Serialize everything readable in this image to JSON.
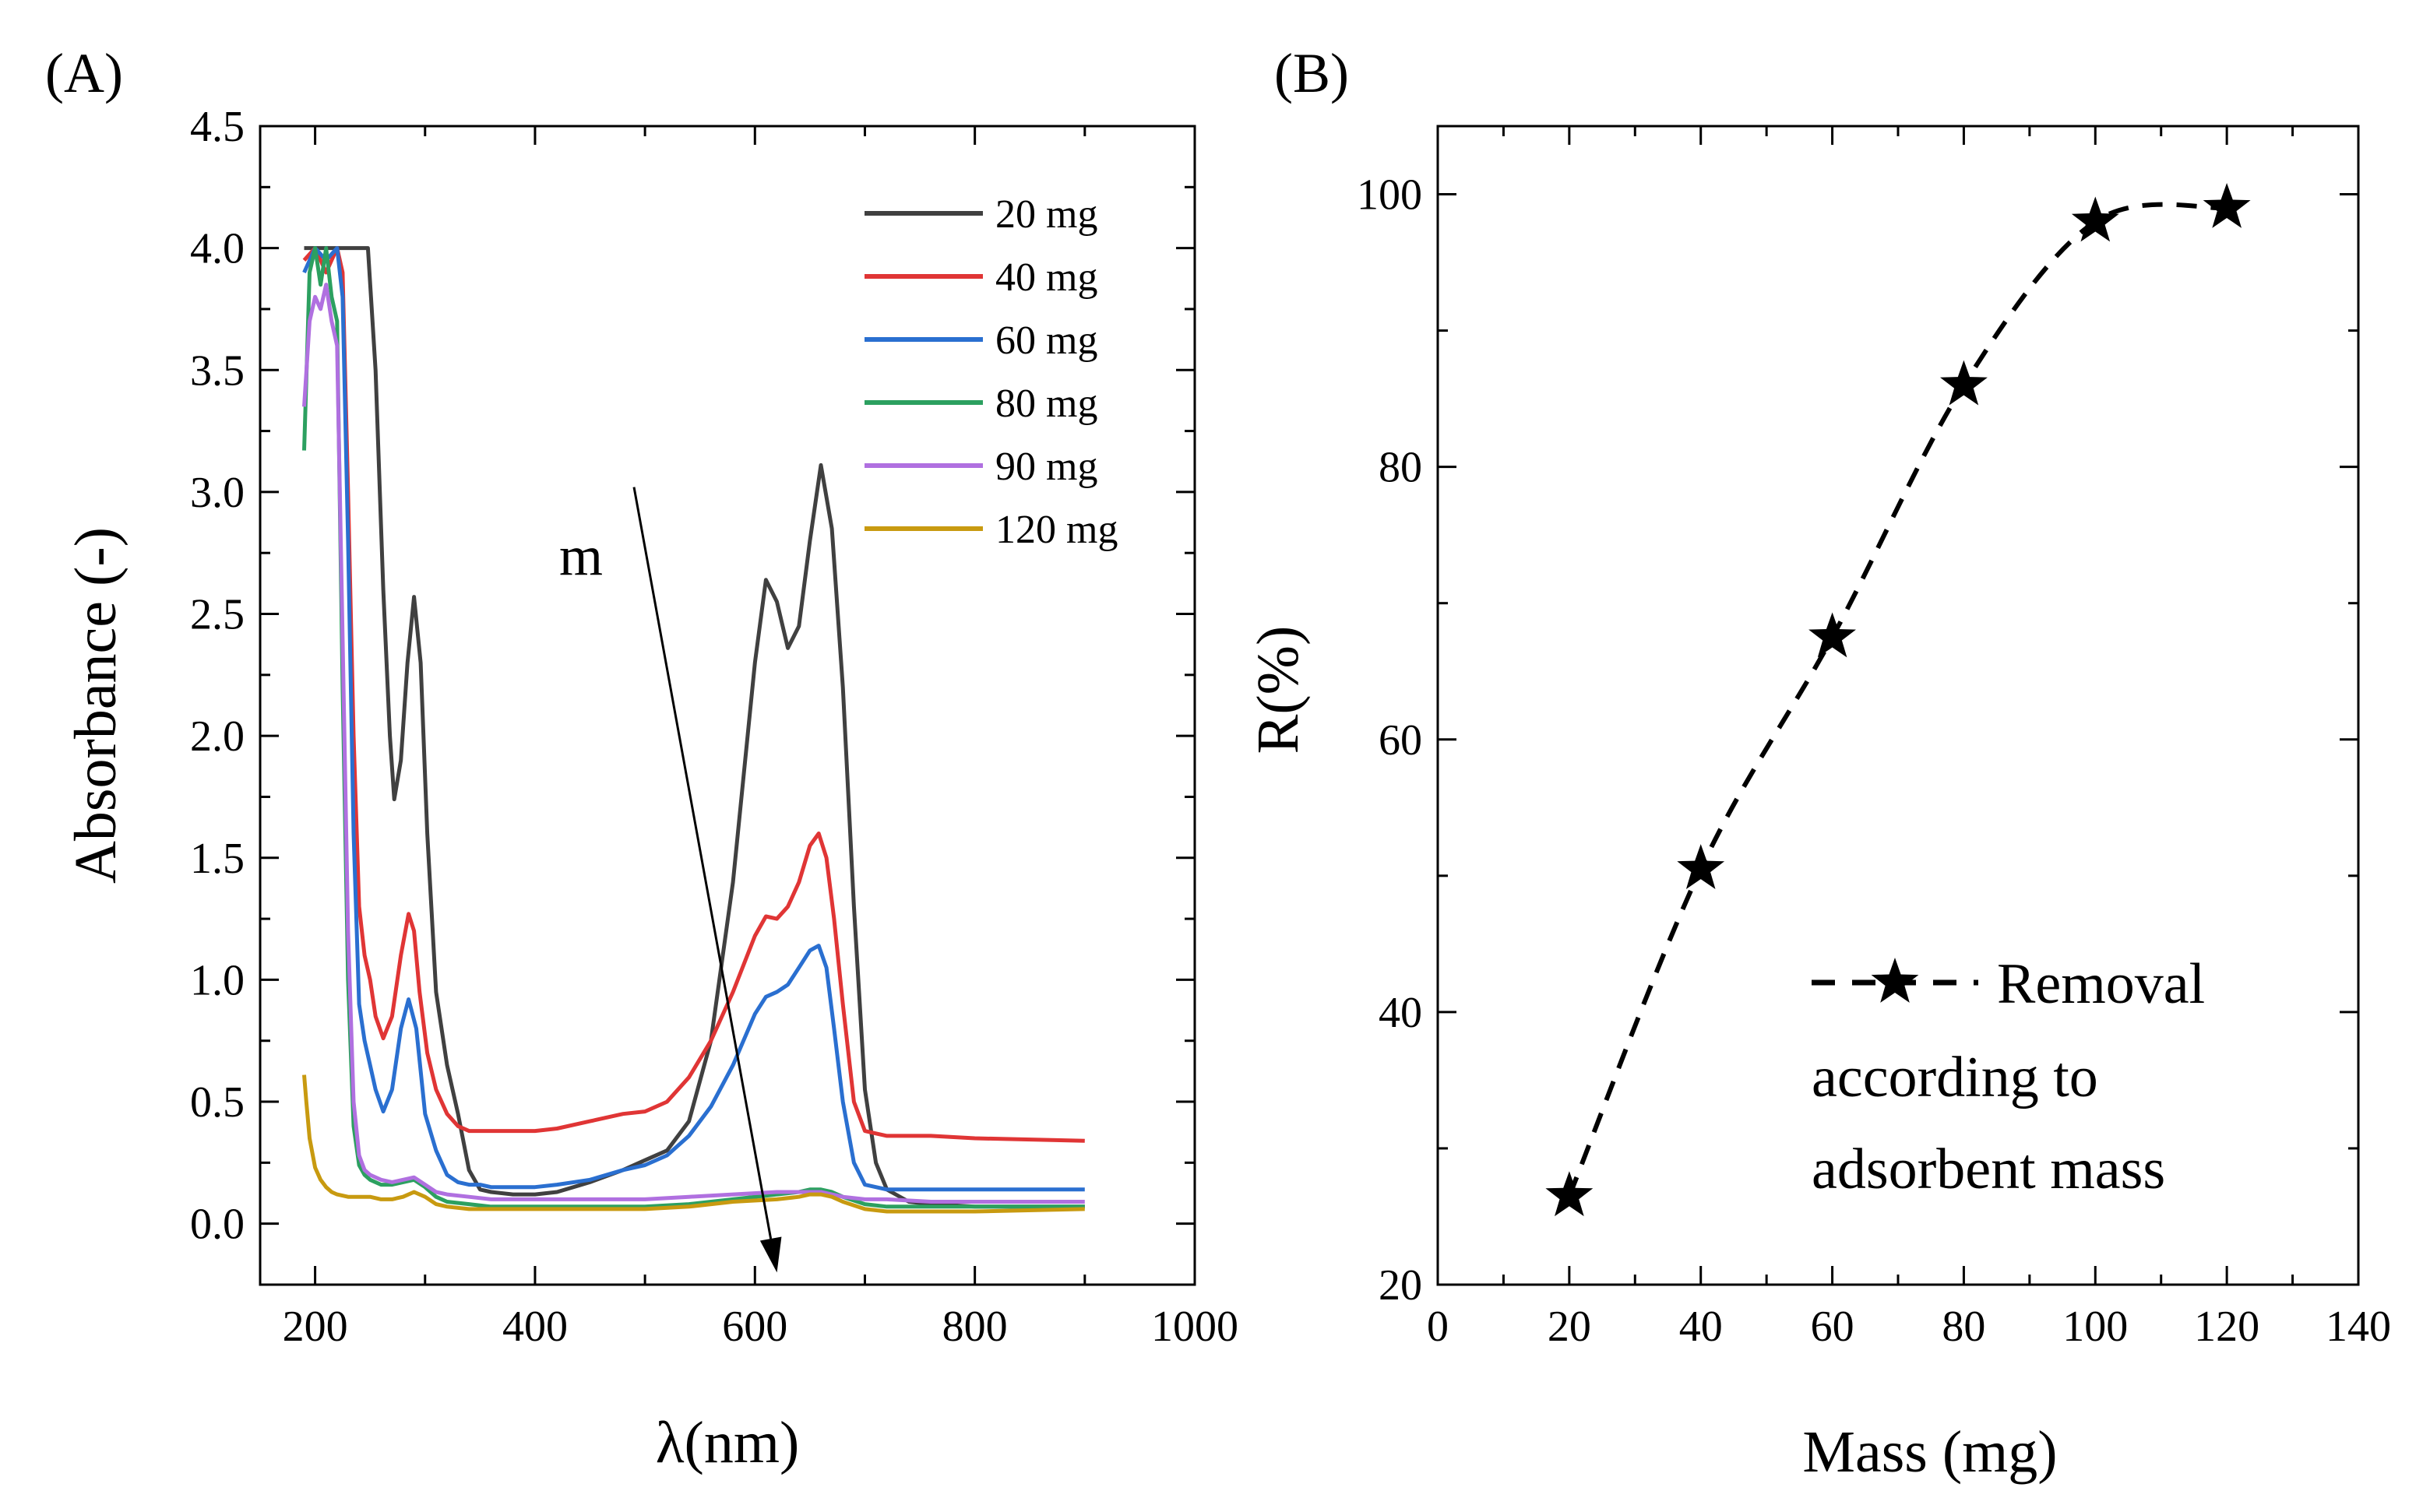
{
  "chart_data": [
    {
      "panel": "(A)",
      "type": "line",
      "xlabel": "λ(nm)",
      "ylabel": "Absorbance (-)",
      "xlim": [
        150,
        1000
      ],
      "ylim": [
        -0.25,
        4.5
      ],
      "xticks": [
        200,
        400,
        600,
        800,
        1000
      ],
      "yticks": [
        0.0,
        0.5,
        1.0,
        1.5,
        2.0,
        2.5,
        3.0,
        3.5,
        4.0,
        4.5
      ],
      "ytick_labels": [
        "0.0",
        "0.5",
        "1.0",
        "1.5",
        "2.0",
        "2.5",
        "3.0",
        "3.5",
        "4.0",
        "4.5"
      ],
      "grid": false,
      "legend_position": "top-right",
      "annotation": {
        "text": "m",
        "arrow_from": [
          490,
          3.02
        ],
        "arrow_to": [
          620,
          -0.2
        ]
      },
      "series": [
        {
          "name": "20 mg",
          "color": "#404040",
          "x": [
            190,
            200,
            210,
            220,
            230,
            240,
            248,
            255,
            262,
            268,
            272,
            278,
            284,
            290,
            296,
            302,
            310,
            320,
            330,
            340,
            350,
            360,
            380,
            400,
            420,
            450,
            480,
            500,
            520,
            540,
            560,
            580,
            600,
            610,
            620,
            630,
            640,
            650,
            660,
            670,
            680,
            690,
            700,
            710,
            720,
            740,
            760,
            800,
            900
          ],
          "y": [
            4.0,
            4.0,
            4.0,
            4.0,
            4.0,
            4.0,
            4.0,
            3.5,
            2.6,
            2.0,
            1.74,
            1.9,
            2.3,
            2.57,
            2.3,
            1.6,
            0.95,
            0.65,
            0.45,
            0.22,
            0.14,
            0.13,
            0.12,
            0.12,
            0.13,
            0.17,
            0.22,
            0.26,
            0.3,
            0.42,
            0.75,
            1.4,
            2.3,
            2.64,
            2.55,
            2.36,
            2.45,
            2.8,
            3.11,
            2.85,
            2.2,
            1.3,
            0.55,
            0.25,
            0.14,
            0.09,
            0.08,
            0.07,
            0.07
          ]
        },
        {
          "name": "40 mg",
          "color": "#e03535",
          "x": [
            190,
            200,
            210,
            220,
            225,
            230,
            235,
            240,
            245,
            250,
            255,
            262,
            270,
            278,
            285,
            290,
            295,
            302,
            310,
            320,
            330,
            340,
            350,
            360,
            380,
            400,
            420,
            450,
            480,
            500,
            520,
            540,
            560,
            580,
            600,
            610,
            620,
            630,
            640,
            650,
            658,
            665,
            672,
            680,
            690,
            700,
            710,
            720,
            760,
            800,
            900
          ],
          "y": [
            3.95,
            4.0,
            3.9,
            4.0,
            3.9,
            3.0,
            2.0,
            1.3,
            1.1,
            1.0,
            0.85,
            0.76,
            0.85,
            1.1,
            1.27,
            1.2,
            0.95,
            0.7,
            0.55,
            0.45,
            0.4,
            0.38,
            0.38,
            0.38,
            0.38,
            0.38,
            0.39,
            0.42,
            0.45,
            0.46,
            0.5,
            0.6,
            0.75,
            0.95,
            1.18,
            1.26,
            1.25,
            1.3,
            1.4,
            1.55,
            1.6,
            1.5,
            1.25,
            0.9,
            0.5,
            0.38,
            0.37,
            0.36,
            0.36,
            0.35,
            0.34
          ]
        },
        {
          "name": "60 mg",
          "color": "#2a6fd0",
          "x": [
            190,
            200,
            210,
            220,
            225,
            230,
            235,
            240,
            245,
            250,
            255,
            262,
            270,
            278,
            285,
            292,
            300,
            310,
            320,
            330,
            340,
            350,
            360,
            380,
            400,
            420,
            450,
            480,
            500,
            520,
            540,
            560,
            580,
            600,
            610,
            620,
            630,
            640,
            650,
            658,
            665,
            672,
            680,
            690,
            700,
            710,
            720,
            760,
            800,
            900
          ],
          "y": [
            3.9,
            4.0,
            3.95,
            4.0,
            3.8,
            2.8,
            1.6,
            0.9,
            0.75,
            0.65,
            0.55,
            0.46,
            0.55,
            0.8,
            0.92,
            0.8,
            0.45,
            0.3,
            0.2,
            0.17,
            0.16,
            0.16,
            0.15,
            0.15,
            0.15,
            0.16,
            0.18,
            0.22,
            0.24,
            0.28,
            0.36,
            0.48,
            0.65,
            0.86,
            0.93,
            0.95,
            0.98,
            1.05,
            1.12,
            1.14,
            1.05,
            0.8,
            0.5,
            0.25,
            0.16,
            0.15,
            0.14,
            0.14,
            0.14,
            0.14
          ]
        },
        {
          "name": "80 mg",
          "color": "#2ca060",
          "x": [
            190,
            195,
            200,
            205,
            210,
            215,
            220,
            225,
            230,
            235,
            240,
            245,
            250,
            260,
            270,
            280,
            290,
            300,
            310,
            320,
            340,
            360,
            400,
            450,
            500,
            540,
            580,
            620,
            640,
            650,
            660,
            670,
            680,
            700,
            720,
            760,
            800,
            900
          ],
          "y": [
            3.17,
            3.9,
            4.0,
            3.85,
            4.0,
            3.8,
            3.7,
            2.2,
            1.0,
            0.4,
            0.24,
            0.2,
            0.18,
            0.16,
            0.16,
            0.17,
            0.18,
            0.15,
            0.11,
            0.09,
            0.08,
            0.07,
            0.07,
            0.07,
            0.07,
            0.08,
            0.1,
            0.12,
            0.13,
            0.14,
            0.14,
            0.13,
            0.11,
            0.08,
            0.07,
            0.07,
            0.07,
            0.07
          ]
        },
        {
          "name": "90 mg",
          "color": "#b070e0",
          "x": [
            190,
            195,
            200,
            205,
            210,
            215,
            220,
            225,
            230,
            235,
            240,
            245,
            250,
            260,
            270,
            280,
            290,
            300,
            310,
            320,
            340,
            360,
            400,
            450,
            500,
            540,
            580,
            620,
            640,
            650,
            660,
            670,
            680,
            700,
            720,
            760,
            800,
            900
          ],
          "y": [
            3.35,
            3.7,
            3.8,
            3.75,
            3.85,
            3.7,
            3.6,
            2.4,
            1.2,
            0.5,
            0.28,
            0.22,
            0.2,
            0.18,
            0.17,
            0.18,
            0.19,
            0.16,
            0.13,
            0.12,
            0.11,
            0.1,
            0.1,
            0.1,
            0.1,
            0.11,
            0.12,
            0.13,
            0.13,
            0.13,
            0.13,
            0.12,
            0.11,
            0.1,
            0.1,
            0.09,
            0.09,
            0.09
          ]
        },
        {
          "name": "120 mg",
          "color": "#c89a10",
          "x": [
            190,
            192,
            195,
            200,
            205,
            210,
            215,
            220,
            230,
            240,
            250,
            260,
            270,
            280,
            290,
            300,
            310,
            320,
            340,
            360,
            400,
            450,
            500,
            540,
            580,
            620,
            640,
            650,
            660,
            670,
            680,
            700,
            720,
            760,
            800,
            900
          ],
          "y": [
            0.61,
            0.5,
            0.35,
            0.23,
            0.18,
            0.15,
            0.13,
            0.12,
            0.11,
            0.11,
            0.11,
            0.1,
            0.1,
            0.11,
            0.13,
            0.11,
            0.08,
            0.07,
            0.06,
            0.06,
            0.06,
            0.06,
            0.06,
            0.07,
            0.09,
            0.1,
            0.11,
            0.12,
            0.12,
            0.11,
            0.09,
            0.06,
            0.05,
            0.05,
            0.05,
            0.06
          ]
        }
      ]
    },
    {
      "panel": "(B)",
      "type": "line",
      "xlabel": "Mass (mg)",
      "ylabel": "R(%)",
      "xlim": [
        0,
        140
      ],
      "ylim": [
        20,
        105
      ],
      "xticks": [
        0,
        20,
        40,
        60,
        80,
        100,
        120,
        140
      ],
      "yticks": [
        20,
        40,
        60,
        80,
        100
      ],
      "grid": false,
      "legend_position": "bottom-right",
      "legend_text": [
        "Removal",
        "according to",
        "adsorbent mass"
      ],
      "series": [
        {
          "name": "Removal according to adsorbent mass",
          "color": "#000000",
          "marker": "star",
          "line_style": "dashed",
          "x": [
            20,
            40,
            60,
            80,
            100,
            120
          ],
          "y": [
            26.5,
            50.5,
            67.5,
            86,
            98,
            99
          ]
        }
      ]
    }
  ]
}
